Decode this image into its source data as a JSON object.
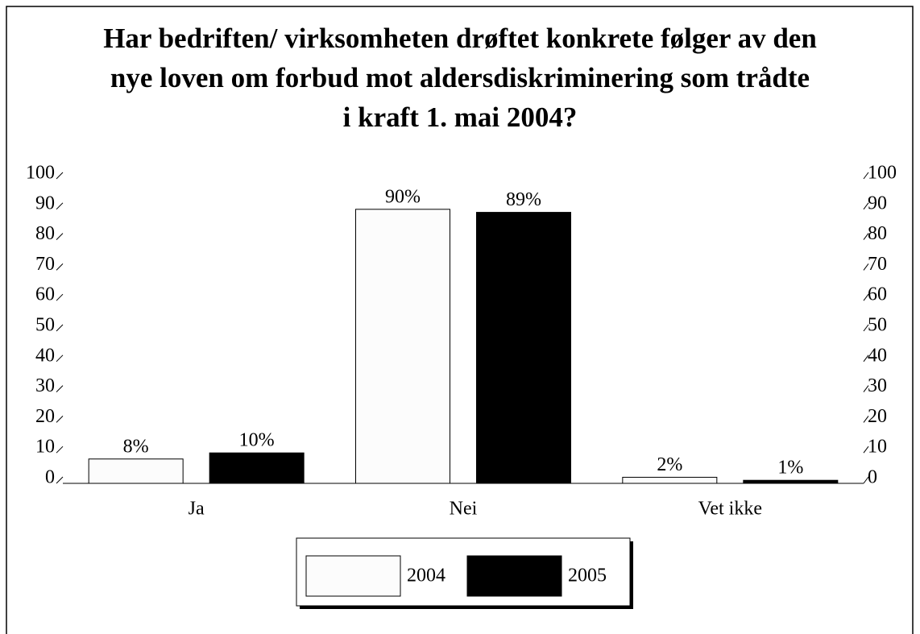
{
  "chart_data": {
    "type": "bar",
    "title_lines": [
      "Har bedriften/ virksomheten drøftet konkrete følger av den",
      "nye loven om forbud mot aldersdiskriminering som trådte",
      "i kraft 1. mai 2004?"
    ],
    "categories": [
      "Ja",
      "Nei",
      "Vet ikke"
    ],
    "series": [
      {
        "name": "2004",
        "color": "#fcfcfc",
        "values": [
          8,
          90,
          2
        ],
        "value_labels": [
          "8%",
          "90%",
          "2%"
        ]
      },
      {
        "name": "2005",
        "color": "#000000",
        "values": [
          10,
          89,
          1
        ],
        "value_labels": [
          "10%",
          "89%",
          "1%"
        ]
      }
    ],
    "ylim": [
      0,
      100
    ],
    "yticks": [
      0,
      10,
      20,
      30,
      40,
      50,
      60,
      70,
      80,
      90,
      100
    ],
    "y2lim": [
      0,
      100
    ],
    "y2ticks": [
      0,
      10,
      20,
      30,
      40,
      50,
      60,
      70,
      80,
      90,
      100
    ],
    "legend": "bottom"
  }
}
